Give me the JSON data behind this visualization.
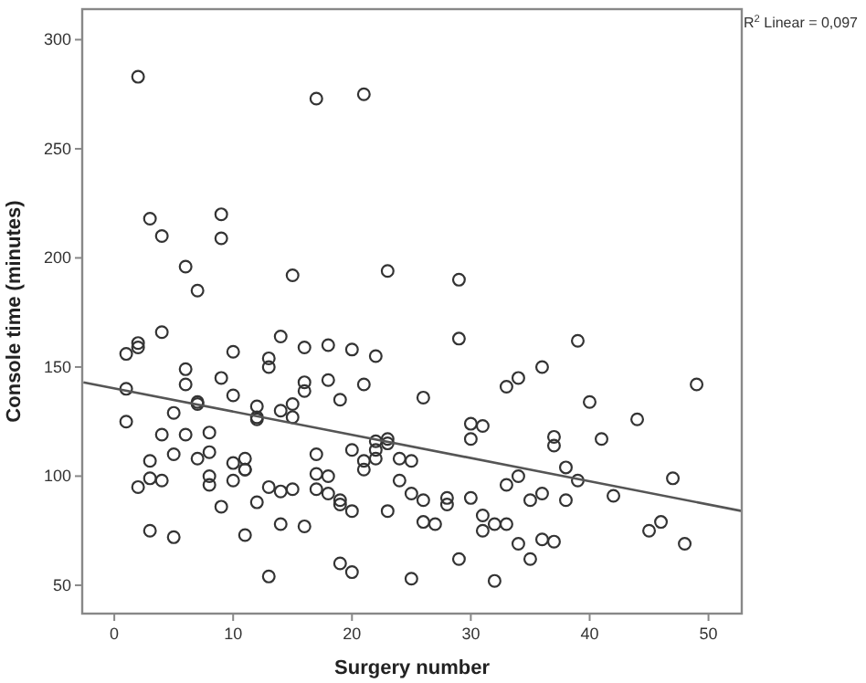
{
  "chart_data": {
    "type": "scatter",
    "xlabel": "Surgery number",
    "ylabel": "Console time (minutes)",
    "annotations": [
      "R$^{2}$ Linear = 0,097"
    ],
    "xlim": [
      -2.7,
      52.8
    ],
    "ylim": [
      37,
      314
    ],
    "xticks": [
      0,
      10,
      20,
      30,
      40,
      50
    ],
    "yticks": [
      50,
      100,
      150,
      200,
      250,
      300
    ],
    "grid": false,
    "marker": "circle",
    "series": [
      {
        "color": "#333333",
        "x": [
          2,
          17,
          21,
          3,
          9,
          4,
          9,
          6,
          7,
          15,
          23,
          29,
          4,
          1,
          2,
          2,
          10,
          14,
          16,
          18,
          20,
          22,
          13,
          13,
          6,
          9,
          6,
          1,
          16,
          16,
          18,
          21,
          10,
          7,
          7,
          19,
          26,
          12,
          15,
          5,
          14,
          12,
          12,
          15,
          1,
          4,
          6,
          8,
          5,
          3,
          7,
          8,
          10,
          11,
          11,
          11,
          3,
          4,
          8,
          8,
          10,
          2,
          17,
          20,
          22,
          22,
          22,
          23,
          23,
          21,
          21,
          24,
          25,
          17,
          18,
          24,
          13,
          14,
          15,
          17,
          18,
          19,
          19,
          20,
          12,
          9,
          23,
          25,
          26,
          28,
          28,
          3,
          5,
          11,
          14,
          16,
          26,
          27,
          19,
          20,
          13,
          25,
          29,
          29,
          39,
          36,
          34,
          33,
          49,
          40,
          30,
          31,
          30,
          44,
          37,
          37,
          41,
          38,
          39,
          34,
          33,
          47,
          30,
          36,
          35,
          38,
          42,
          31,
          31,
          32,
          33,
          34,
          36,
          37,
          35,
          32,
          45,
          46,
          48
        ],
        "values": [
          283,
          273,
          275,
          218,
          220,
          210,
          209,
          196,
          185,
          192,
          194,
          190,
          166,
          156,
          161,
          159,
          157,
          164,
          159,
          160,
          158,
          155,
          154,
          150,
          149,
          145,
          142,
          140,
          143,
          139,
          144,
          142,
          137,
          134,
          133,
          135,
          136,
          132,
          133,
          129,
          130,
          127,
          126,
          127,
          125,
          119,
          119,
          120,
          110,
          107,
          108,
          111,
          106,
          108,
          103,
          103,
          99,
          98,
          100,
          96,
          98,
          95,
          110,
          112,
          116,
          112,
          108,
          117,
          115,
          107,
          103,
          108,
          107,
          101,
          100,
          98,
          95,
          93,
          94,
          94,
          92,
          89,
          87,
          84,
          88,
          86,
          84,
          92,
          89,
          90,
          87,
          75,
          72,
          73,
          78,
          77,
          79,
          78,
          60,
          56,
          54,
          53,
          62,
          163,
          162,
          150,
          145,
          141,
          142,
          134,
          124,
          123,
          117,
          126,
          118,
          114,
          117,
          104,
          98,
          100,
          96,
          99,
          90,
          92,
          89,
          89,
          91,
          82,
          75,
          78,
          78,
          69,
          71,
          70,
          62,
          52,
          75,
          79,
          69
        ]
      },
      {
        "type": "line",
        "color": "#555555",
        "x": [
          -2.6,
          52.8
        ],
        "values": [
          143,
          84
        ],
        "marker": "none",
        "line_style": "solid"
      }
    ]
  }
}
